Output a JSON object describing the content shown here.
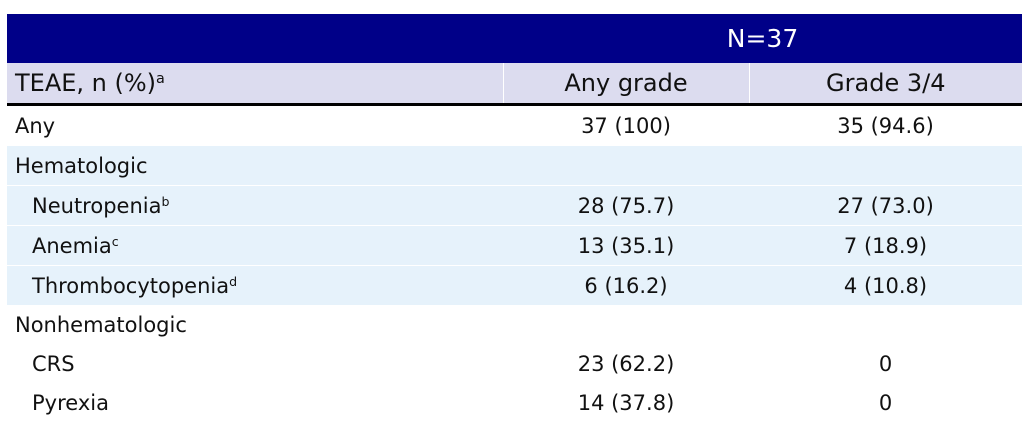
{
  "table": {
    "title": "N=37",
    "header": {
      "label": "TEAE, n (%)",
      "sup": "a",
      "columns": [
        "Any grade",
        "Grade 3/4"
      ]
    },
    "body": [
      {
        "label": "Any",
        "cells": [
          "37 (100)",
          "35 (94.6)"
        ]
      },
      {
        "label": "Hematologic",
        "shaded": true,
        "items": [
          {
            "label": "Neutropenia",
            "sup": "b",
            "cells": [
              "28 (75.7)",
              "27 (73.0)"
            ]
          },
          {
            "label": "Anemia",
            "sup": "c",
            "cells": [
              "13 (35.1)",
              "7 (18.9)"
            ]
          },
          {
            "label": "Thrombocytopenia",
            "sup": "d",
            "cells": [
              "6 (16.2)",
              "4 (10.8)"
            ]
          }
        ]
      },
      {
        "label": "Nonhematologic",
        "items": [
          {
            "label": "CRS",
            "cells": [
              "23 (62.2)",
              "0"
            ]
          },
          {
            "label": "Pyrexia",
            "cells": [
              "14 (37.8)",
              "0"
            ]
          }
        ]
      }
    ]
  }
}
